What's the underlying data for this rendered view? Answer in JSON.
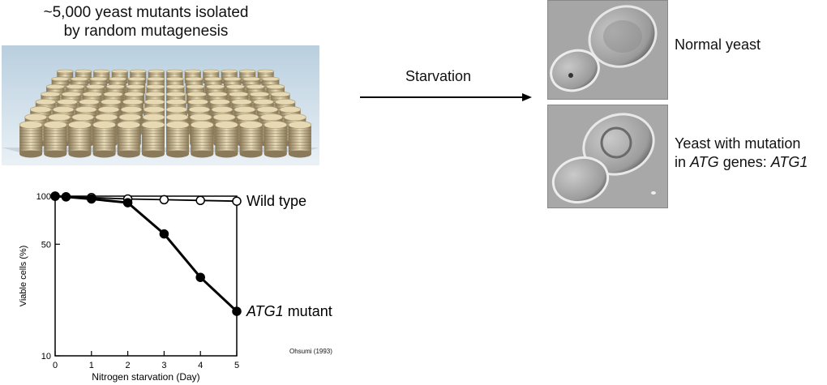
{
  "header": {
    "title_line1": "~5,000 yeast mutants isolated",
    "title_line2": "by random mutagenesis"
  },
  "arrow": {
    "label": "Starvation"
  },
  "micrographs": {
    "normal_label": "Normal yeast",
    "mutant_label_line1": "Yeast with mutation",
    "mutant_label_pre": "in ",
    "mutant_label_gene": "ATG",
    "mutant_label_mid": " genes: ",
    "mutant_label_gene2": "ATG1"
  },
  "credit": "Ohsumi (1993)",
  "chart_data": {
    "type": "line",
    "xlabel": "Nitrogen starvation (Day)",
    "ylabel": "Viable cells (%)",
    "xlim": [
      0,
      5
    ],
    "ylim": [
      10,
      100
    ],
    "yscale": "log",
    "x_ticks": [
      "0",
      "1",
      "2",
      "3",
      "4",
      "5"
    ],
    "y_ticks": [
      "100",
      "50",
      "10"
    ],
    "grid": false,
    "series": [
      {
        "name": "Wild type",
        "name_italic": "",
        "name_rest": "Wild type",
        "marker": "open",
        "points": [
          [
            0,
            100
          ],
          [
            0.3,
            99
          ],
          [
            1,
            98
          ],
          [
            2,
            96
          ],
          [
            3,
            95
          ],
          [
            4,
            94
          ],
          [
            5,
            93
          ]
        ]
      },
      {
        "name": "ATG1 mutant",
        "name_italic": "ATG1",
        "name_rest": " mutant",
        "marker": "filled",
        "points": [
          [
            0,
            100
          ],
          [
            0.3,
            99
          ],
          [
            1,
            96
          ],
          [
            2,
            91
          ],
          [
            3,
            58
          ],
          [
            4,
            31
          ],
          [
            5,
            19
          ]
        ]
      }
    ]
  }
}
